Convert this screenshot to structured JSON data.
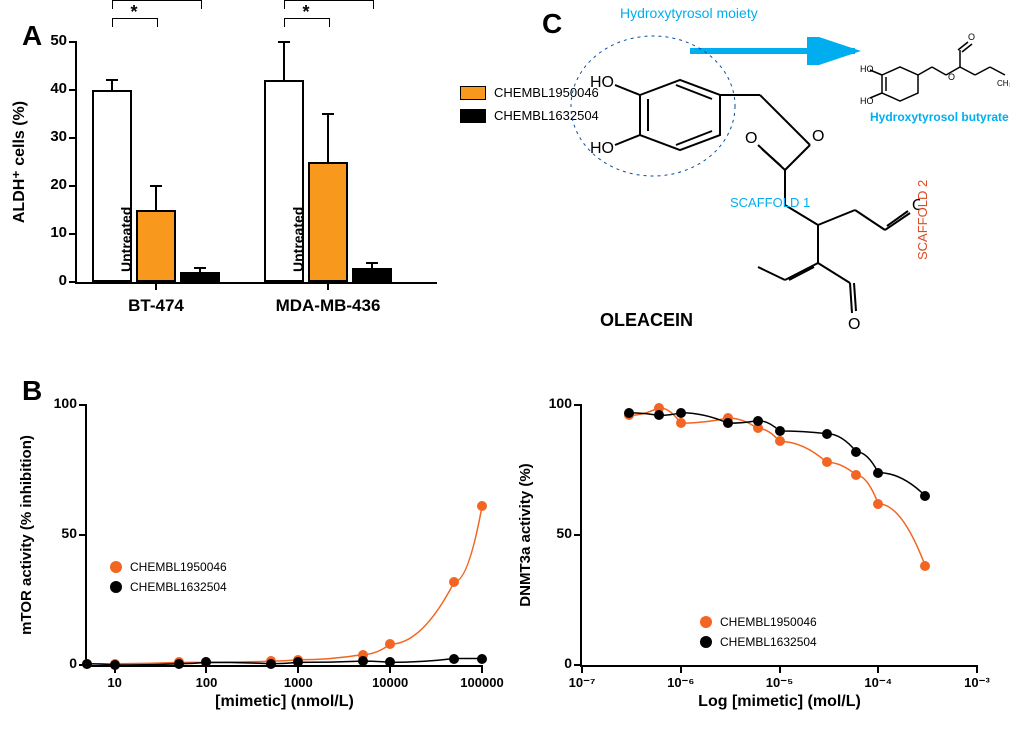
{
  "panelA": {
    "label": "A",
    "chart_type": "bar",
    "y_title": "ALDH⁺ cells (%)",
    "ylim": [
      0,
      50
    ],
    "yticks": [
      0,
      10,
      20,
      30,
      40,
      50
    ],
    "background_color": "#ffffff",
    "axis_color": "#000000",
    "tick_font_size": 15,
    "axis_label_font_size": 15,
    "bar_border_color": "#000000",
    "bar_border_width": 2,
    "groups": [
      {
        "name": "BT-474",
        "bars": [
          {
            "label": "Untreated",
            "value": 40,
            "err": 2,
            "color": "#ffffff",
            "vtext": "Untreated"
          },
          {
            "label": "CHEMBL1950046",
            "value": 15,
            "err": 5,
            "color": "#f8981d"
          },
          {
            "label": "CHEMBL1632504",
            "value": 2,
            "err": 1,
            "color": "#000000"
          }
        ],
        "sig": [
          {
            "from": 0,
            "to": 1,
            "stars": "*"
          },
          {
            "from": 0,
            "to": 2,
            "stars": "**"
          }
        ]
      },
      {
        "name": "MDA-MB-436",
        "bars": [
          {
            "label": "Untreated",
            "value": 42,
            "err": 8,
            "color": "#ffffff",
            "vtext": "Untreated"
          },
          {
            "label": "CHEMBL1950046",
            "value": 25,
            "err": 10,
            "color": "#f8981d"
          },
          {
            "label": "CHEMBL1632504",
            "value": 3,
            "err": 1,
            "color": "#000000"
          }
        ],
        "sig": [
          {
            "from": 0,
            "to": 1,
            "stars": "*"
          },
          {
            "from": 0,
            "to": 2,
            "stars": "**"
          }
        ]
      }
    ],
    "legend": [
      {
        "color": "#f8981d",
        "label": "CHEMBL1950046"
      },
      {
        "color": "#000000",
        "label": "CHEMBL1632504"
      }
    ]
  },
  "panelB_left": {
    "label": "B",
    "chart_type": "scatter-line",
    "x_title": "[mimetic] (nmol/L)",
    "y_title": "mTOR activity (% inhibition)",
    "x_scale": "log",
    "xlim": [
      5,
      100000
    ],
    "xticks": [
      10,
      100,
      1000,
      10000,
      100000
    ],
    "ylim": [
      0,
      100
    ],
    "yticks": [
      0,
      50,
      100
    ],
    "background_color": "#ffffff",
    "axis_color": "#000000",
    "marker_size": 10,
    "line_width": 1.5,
    "series": [
      {
        "name": "CHEMBL1950046",
        "color": "#f26522",
        "x": [
          5,
          10,
          50,
          100,
          500,
          1000,
          5000,
          10000,
          50000,
          100000
        ],
        "y": [
          0.5,
          0.5,
          1,
          1,
          1.5,
          2,
          4,
          8,
          32,
          61
        ]
      },
      {
        "name": "CHEMBL1632504",
        "color": "#000000",
        "x": [
          5,
          10,
          50,
          100,
          500,
          1000,
          5000,
          10000,
          50000,
          100000
        ],
        "y": [
          0.5,
          0,
          0.5,
          1,
          0.5,
          1,
          1.5,
          1,
          2.5,
          2.5
        ]
      }
    ],
    "legend": [
      {
        "color": "#f26522",
        "label": "CHEMBL1950046"
      },
      {
        "color": "#000000",
        "label": "CHEMBL1632504"
      }
    ]
  },
  "panelB_right": {
    "chart_type": "scatter-line",
    "x_title": "Log [mimetic] (mol/L)",
    "y_title": "DNMT3a activity (%)",
    "x_scale": "log",
    "xlim": [
      1e-07,
      0.001
    ],
    "xticks_labels": [
      "10⁻⁷",
      "10⁻⁶",
      "10⁻⁵",
      "10⁻⁴",
      "10⁻³"
    ],
    "xticks_pos": [
      1e-07,
      1e-06,
      1e-05,
      0.0001,
      0.001
    ],
    "ylim": [
      0,
      100
    ],
    "yticks": [
      0,
      50,
      100
    ],
    "background_color": "#ffffff",
    "axis_color": "#000000",
    "marker_size": 10,
    "line_width": 1.5,
    "series": [
      {
        "name": "CHEMBL1950046",
        "color": "#f26522",
        "curve_y_at_right": 42,
        "x": [
          3e-07,
          6e-07,
          1e-06,
          3e-06,
          6e-06,
          1e-05,
          3e-05,
          6e-05,
          0.0001,
          0.0003
        ],
        "y": [
          96,
          99,
          93,
          95,
          91,
          86,
          78,
          73,
          62,
          38
        ]
      },
      {
        "name": "CHEMBL1632504",
        "color": "#000000",
        "curve_y_at_right": 58,
        "x": [
          3e-07,
          6e-07,
          1e-06,
          3e-06,
          6e-06,
          1e-05,
          3e-05,
          6e-05,
          0.0001,
          0.0003
        ],
        "y": [
          97,
          96,
          97,
          93,
          94,
          90,
          89,
          82,
          74,
          65
        ]
      }
    ],
    "legend": [
      {
        "color": "#f26522",
        "label": "CHEMBL1950046"
      },
      {
        "color": "#000000",
        "label": "CHEMBL1632504"
      }
    ]
  },
  "panelC": {
    "label": "C",
    "annotations": {
      "hydroxytyrosol_moiety": "Hydroxytyrosol moiety",
      "hydroxytyrosol_moiety_color": "#00aeef",
      "hydroxytyrosol_butyrate": "Hydroxytyrosol butyrate",
      "hydroxytyrosol_butyrate_color": "#00aeef",
      "scaffold1": "SCAFFOLD 1",
      "scaffold1_color": "#00aeef",
      "scaffold2": "SCAFFOLD 2",
      "scaffold2_color": "#d94b27",
      "name": "OLEACEIN",
      "name_color": "#000000",
      "arrow_color": "#00aeef",
      "dashed_circle_color": "#0b4ea2"
    },
    "structure_labels": [
      "HO",
      "HO",
      "O",
      "O",
      "O",
      "O",
      "CH₃"
    ],
    "mini_labels": [
      "HO",
      "HO",
      "O",
      "O",
      "CH₃"
    ]
  }
}
